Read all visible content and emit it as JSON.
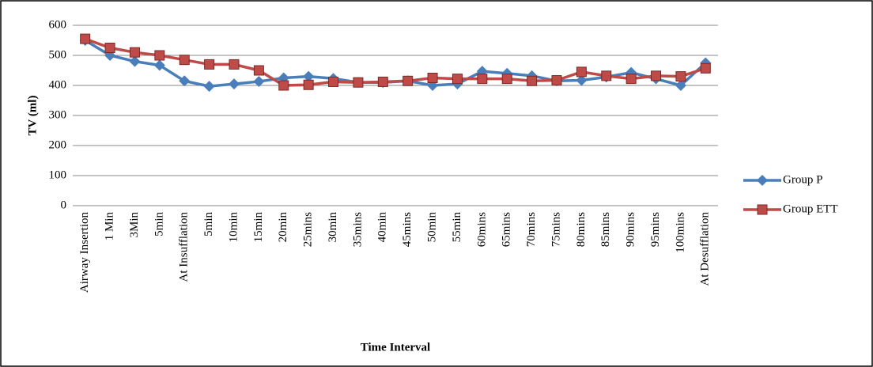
{
  "chart_data": {
    "type": "line",
    "x_label": "Time Interval",
    "y_label": "TV (ml)",
    "categories": [
      "Airway Insertion",
      "1 Min",
      "3Min",
      "5min",
      "At Insufflation",
      "5min",
      "10min",
      "15min",
      "20min",
      "25mins",
      "30min",
      "35mins",
      "40min",
      "45mins",
      "50min",
      "55min",
      "60mins",
      "65mins",
      "70mins",
      "75mins",
      "80mins",
      "85mins",
      "90mins",
      "95mins",
      "100mins",
      "At Desufflation"
    ],
    "series": [
      {
        "name": "Group P",
        "color": "#4a7ebb",
        "marker": "diamond",
        "values": [
          550,
          500,
          480,
          467,
          415,
          397,
          405,
          413,
          425,
          430,
          423,
          410,
          410,
          415,
          400,
          405,
          447,
          440,
          432,
          415,
          417,
          428,
          443,
          422,
          400,
          475
        ]
      },
      {
        "name": "Group ETT",
        "color": "#be4b48",
        "marker": "square",
        "values": [
          555,
          525,
          510,
          500,
          485,
          470,
          470,
          450,
          400,
          402,
          412,
          410,
          412,
          415,
          425,
          422,
          422,
          422,
          415,
          417,
          445,
          432,
          422,
          432,
          430,
          457
        ]
      }
    ],
    "ylim": [
      0,
      600
    ],
    "yticks": [
      0,
      100,
      200,
      300,
      400,
      500,
      600
    ],
    "grid": true,
    "legend": "right"
  }
}
